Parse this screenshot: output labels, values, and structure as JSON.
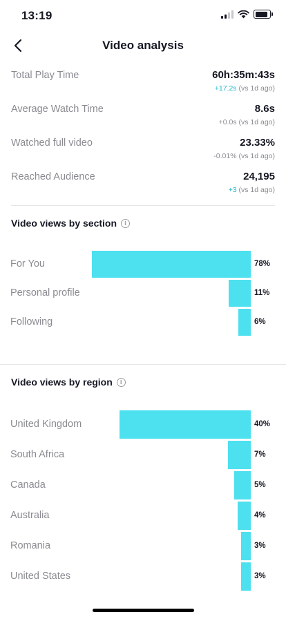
{
  "status_bar": {
    "time": "13:19"
  },
  "header": {
    "title": "Video analysis"
  },
  "stats": [
    {
      "label": "Total Play Time",
      "value": "60h:35m:43s",
      "delta": "+17.2s",
      "delta_suffix": " (vs 1d ago)",
      "delta_type": "up"
    },
    {
      "label": "Average Watch Time",
      "value": "8.6s",
      "delta": "+0.0s",
      "delta_suffix": " (vs 1d ago)",
      "delta_type": "neutral"
    },
    {
      "label": "Watched full video",
      "value": "23.33%",
      "delta": "-0.01%",
      "delta_suffix": " (vs 1d ago)",
      "delta_type": "neutral"
    },
    {
      "label": "Reached Audience",
      "value": "24,195",
      "delta": "+3",
      "delta_suffix": " (vs 1d ago)",
      "delta_type": "up"
    }
  ],
  "section_views": {
    "title": "Video views by section",
    "items": [
      {
        "label": "For You",
        "value": 78,
        "pct": "78%"
      },
      {
        "label": "Personal profile",
        "value": 11,
        "pct": "11%"
      },
      {
        "label": "Following",
        "value": 6,
        "pct": "6%"
      }
    ]
  },
  "region_views": {
    "title": "Video views by region",
    "items": [
      {
        "label": "United Kingdom",
        "value": 40,
        "pct": "40%"
      },
      {
        "label": "South Africa",
        "value": 7,
        "pct": "7%"
      },
      {
        "label": "Canada",
        "value": 5,
        "pct": "5%"
      },
      {
        "label": "Australia",
        "value": 4,
        "pct": "4%"
      },
      {
        "label": "Romania",
        "value": 3,
        "pct": "3%"
      },
      {
        "label": "United States",
        "value": 3,
        "pct": "3%"
      }
    ]
  },
  "colors": {
    "bar": "#4de0ef",
    "delta_up": "#20b8cc"
  }
}
